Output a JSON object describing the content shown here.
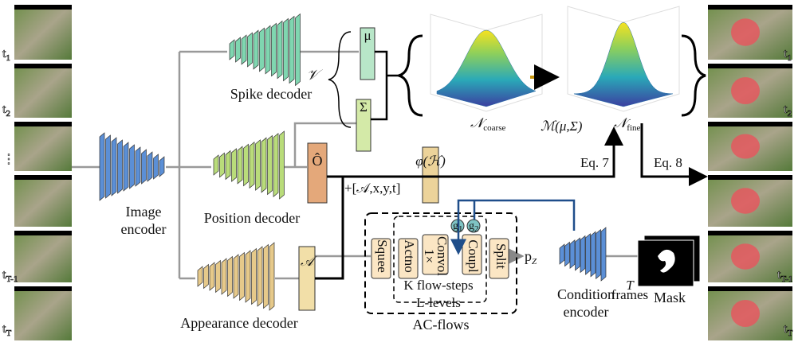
{
  "input_frames": [
    {
      "base": "t",
      "sub": "1"
    },
    {
      "base": "t",
      "sub": "2"
    },
    {
      "base": "⋮"
    },
    {
      "base": "t",
      "sub": "T-1"
    },
    {
      "base": "t",
      "sub": "T"
    }
  ],
  "output_frames": [
    {
      "base": "t",
      "sub": "1"
    },
    {
      "base": "t",
      "sub": "2"
    },
    {
      "base": "t",
      "sub": "T-1"
    },
    {
      "base": "t",
      "sub": "T"
    }
  ],
  "modules": {
    "image_encoder": [
      "Image",
      "encoder"
    ],
    "spike_decoder": "Spike decoder",
    "position_decoder": "Position decoder",
    "appearance_decoder": "Appearance decoder",
    "condition_encoder": [
      "Condition",
      "encoder"
    ]
  },
  "features": {
    "mu": "μ",
    "sigma": "Σ",
    "v": "𝒱",
    "o_hat": "Ô",
    "phi": "φ(ℋ)",
    "a": "𝒜",
    "concat": "+[𝒜,x,y,t]"
  },
  "distributions": {
    "coarse": {
      "base": "𝒩",
      "sub": "coarse"
    },
    "fine": {
      "base": "𝒩",
      "sub": "fine"
    },
    "transform": "ℳ(μ,Σ)"
  },
  "equations": {
    "eq7": "Eq. 7",
    "eq8": "Eq. 8"
  },
  "flow": {
    "squeeze": "Squee",
    "actnorm": "Actno",
    "conv": [
      "1×",
      "Convol"
    ],
    "coupling": "Coupl",
    "split": "Split",
    "gates": [
      {
        "base": "g",
        "sub": "1"
      },
      {
        "base": "g",
        "sub": "2"
      }
    ],
    "k_steps": "K flow-steps",
    "l_levels": "L-levels",
    "name": "AC-flows",
    "output": {
      "base": "p",
      "sub": "Z"
    }
  },
  "mask": {
    "frames": [
      "T",
      "frames"
    ],
    "label": "Mask"
  }
}
